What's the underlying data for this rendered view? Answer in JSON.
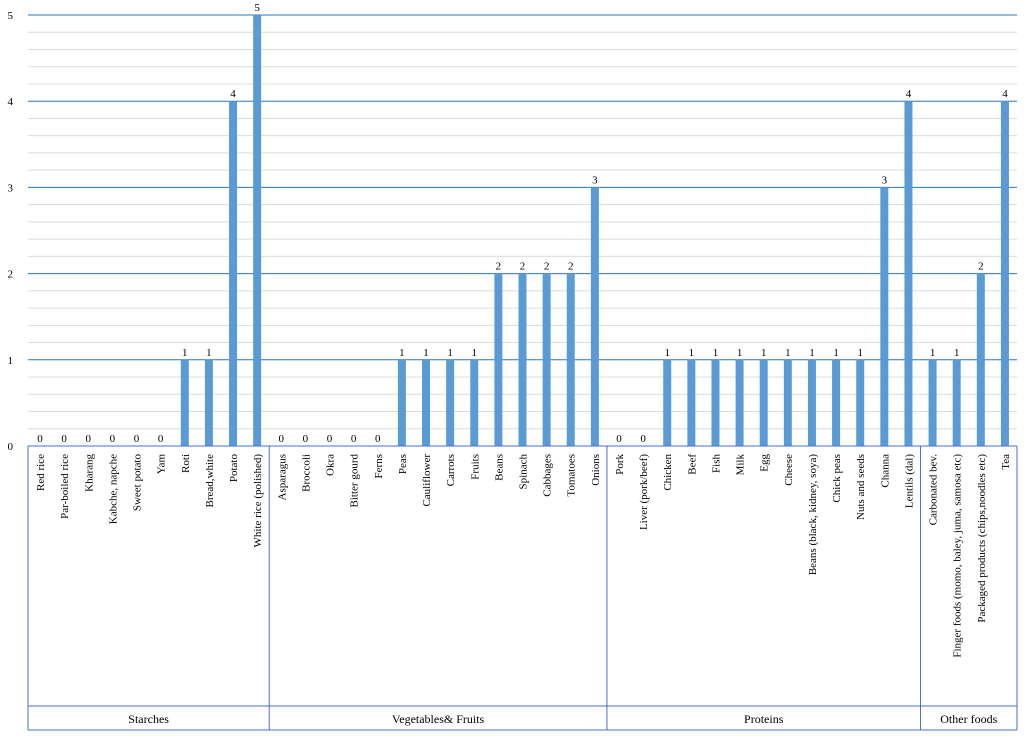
{
  "colors": {
    "bar": "#5b9bd5",
    "gridMajor": "#2e75b6",
    "gridMinor": "#dcdcdc",
    "axis": "#4472c4",
    "text": "#000000",
    "background": "#ffffff"
  },
  "chart_data": {
    "type": "bar",
    "title": "",
    "xlabel": "",
    "ylabel": "",
    "ylim": [
      0,
      5
    ],
    "yticks": [
      "0",
      "1",
      "2",
      "3",
      "4",
      "5"
    ],
    "grid": true,
    "legend": "none",
    "categories": [
      "Red rice",
      "Par-boiled rice",
      "Kharang",
      "Kabche, napche",
      "Sweet potato",
      "Yam",
      "Roti",
      "Bread,white",
      "Potato",
      "White rice (polished)",
      "Asparagus",
      "Broccoli",
      "Okra",
      "Bitter gourd",
      "Ferns",
      "Peas",
      "Cauliflower",
      "Carrots",
      "Fruits",
      "Beans",
      "Spinach",
      "Cabbages",
      "Tomatoes",
      "Onions",
      "Pork",
      "Liver (pork/beef)",
      "Chicken",
      "Beef",
      "Fish",
      "Milk",
      "Egg",
      "Cheese",
      "Beans (black, kidney, soya)",
      "Chick peas",
      "Nuts and seeds",
      "Channa",
      "Lentils (dal)",
      "Carbonated bev.",
      "Finger foods (momo, baley, juma, samosa etc)",
      "Packaged products (chips,noodles etc)",
      "Tea"
    ],
    "values": [
      0,
      0,
      0,
      0,
      0,
      0,
      1,
      1,
      4,
      5,
      0,
      0,
      0,
      0,
      0,
      1,
      1,
      1,
      1,
      2,
      2,
      2,
      2,
      3,
      0,
      0,
      1,
      1,
      1,
      1,
      1,
      1,
      1,
      1,
      1,
      3,
      4,
      1,
      1,
      2,
      4
    ],
    "data_labels": [
      "0",
      "0",
      "0",
      "0",
      "0",
      "0",
      "1",
      "1",
      "4",
      "5",
      "0",
      "0",
      "0",
      "0",
      "0",
      "1",
      "1",
      "1",
      "1",
      "2",
      "2",
      "2",
      "2",
      "3",
      "0",
      "0",
      "1",
      "1",
      "1",
      "1",
      "1",
      "1",
      "1",
      "1",
      "1",
      "3",
      "4",
      "1",
      "1",
      "2",
      "4"
    ],
    "groups": [
      {
        "name": "Starches",
        "start": 0,
        "end": 9
      },
      {
        "name": "Vegetables& Fruits",
        "start": 10,
        "end": 23
      },
      {
        "name": "Proteins",
        "start": 24,
        "end": 36
      },
      {
        "name": "Other foods",
        "start": 37,
        "end": 40
      }
    ]
  }
}
